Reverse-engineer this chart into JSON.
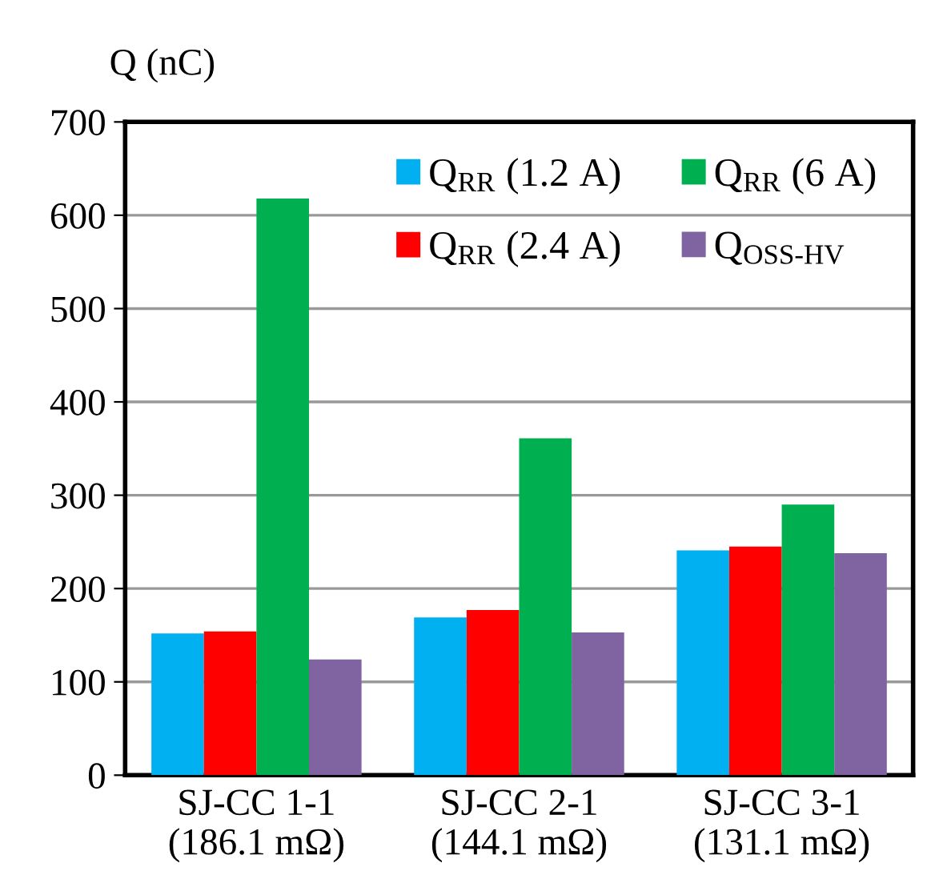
{
  "chart_data": {
    "type": "bar",
    "ylabel": "Q (nC)",
    "categories": [
      "SJ-CC 1-1\n(186.1 mΩ)",
      "SJ-CC 2-1\n(144.1 mΩ)",
      "SJ-CC 3-1\n(131.1 mΩ)"
    ],
    "series": [
      {
        "name": "Q$_{RR}$ (1.2 A)",
        "color": "#00b0f0",
        "values": [
          152,
          169,
          241
        ]
      },
      {
        "name": "Q$_{RR}$ (2.4 A)",
        "color": "#ff0000",
        "values": [
          154,
          177,
          245
        ]
      },
      {
        "name": "Q$_{RR}$ (6 A)",
        "color": "#00b050",
        "values": [
          618,
          361,
          290
        ]
      },
      {
        "name": "Q$_{OSS-HV}$",
        "color": "#8064a2",
        "values": [
          124,
          153,
          238
        ]
      }
    ],
    "ylim": [
      0,
      700
    ],
    "yticks": [
      0,
      100,
      200,
      300,
      400,
      500,
      600,
      700
    ],
    "grid": "y",
    "legend": "top right"
  }
}
